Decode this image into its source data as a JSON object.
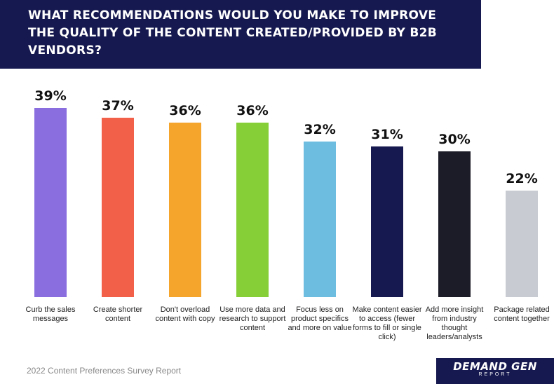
{
  "header": {
    "title": "What recommendations would you make to improve the quality of the content created/provided by B2B vendors?"
  },
  "chart_data": {
    "type": "bar",
    "title": "What recommendations would you make to improve the quality of the content created/provided by B2B vendors?",
    "categories": [
      "Curb the sales messages",
      "Create shorter content",
      "Don't overload content with copy",
      "Use more data and research to support content",
      "Focus less on product specifics and more on value",
      "Make content easier to access (fewer forms to fill or single click)",
      "Add more insight from industry thought leaders/analysts",
      "Package related content together"
    ],
    "values": [
      39,
      37,
      36,
      36,
      32,
      31,
      30,
      22
    ],
    "value_labels": [
      "39%",
      "37%",
      "36%",
      "36%",
      "32%",
      "31%",
      "30%",
      "22%"
    ],
    "colors": [
      "#8a6ee0",
      "#f2604a",
      "#f5a42c",
      "#86cf37",
      "#6cbde0",
      "#16194f",
      "#1c1c28",
      "#c8ccd2"
    ],
    "xlabel": "",
    "ylabel": "",
    "ylim": [
      0,
      39
    ],
    "grid": false
  },
  "footer": {
    "source": "2022 Content Preferences Survey Report"
  },
  "logo": {
    "name": "DEMAND GEN",
    "sub": "REPORT"
  }
}
